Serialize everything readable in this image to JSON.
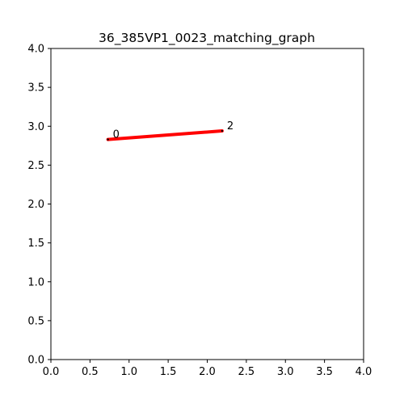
{
  "chart_data": {
    "type": "line",
    "title": "36_385VP1_0023_matching_graph",
    "xlabel": "",
    "ylabel": "",
    "xlim": [
      0,
      4
    ],
    "ylim": [
      0,
      4
    ],
    "x_ticks": [
      "0.0",
      "0.5",
      "1.0",
      "1.5",
      "2.0",
      "2.5",
      "3.0",
      "3.5",
      "4.0"
    ],
    "y_ticks": [
      "0.0",
      "0.5",
      "1.0",
      "1.5",
      "2.0",
      "2.5",
      "3.0",
      "3.5",
      "4.0"
    ],
    "grid": false,
    "nodes": [
      {
        "label": "0",
        "x": 0.73,
        "y": 2.83
      },
      {
        "label": "2",
        "x": 2.19,
        "y": 2.94
      }
    ],
    "edges": [
      {
        "from": 0,
        "to": 1,
        "color": "#ff0000"
      }
    ]
  }
}
